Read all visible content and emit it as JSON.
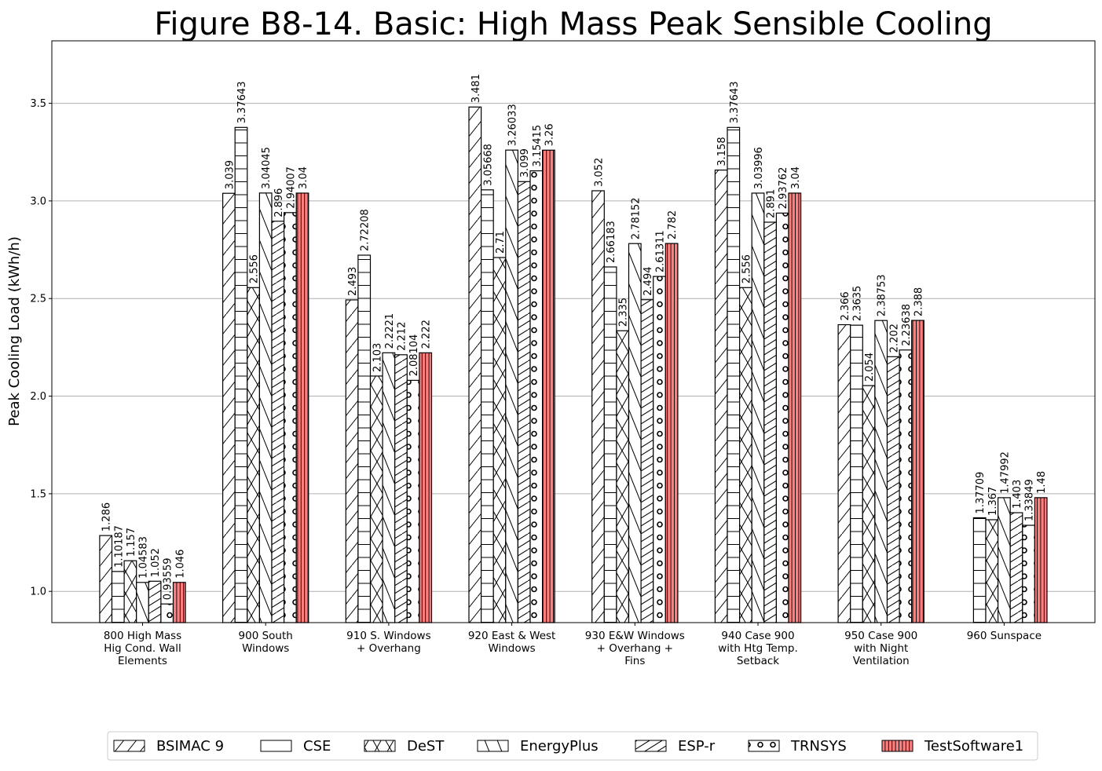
{
  "chart_data": {
    "type": "bar",
    "title": "Figure B8-14.  Basic: High Mass Peak Sensible Cooling",
    "xlabel": "",
    "ylabel": "Peak Cooling Load (kWh/h)",
    "ylim": [
      0.84,
      3.82
    ],
    "yticks": [
      1.0,
      1.5,
      2.0,
      2.5,
      3.0,
      3.5
    ],
    "ytick_labels": [
      "1.0",
      "1.5",
      "2.0",
      "2.5",
      "3.0",
      "3.5"
    ],
    "grid": "y-major",
    "legend_placement": "bottom-center",
    "categories": [
      [
        "800 High Mass",
        "Hig Cond. Wall",
        "Elements"
      ],
      [
        "900 South",
        "Windows"
      ],
      [
        "910 S. Windows",
        "+ Overhang"
      ],
      [
        "920 East & West",
        "Windows"
      ],
      [
        "930 E&W Windows",
        "+ Overhang +",
        "Fins"
      ],
      [
        "940 Case 900",
        "with Htg Temp.",
        "Setback"
      ],
      [
        "950 Case 900",
        "with Night",
        "Ventilation"
      ],
      [
        "960 Sunspace"
      ]
    ],
    "series": [
      {
        "name": "BSIMAC 9",
        "pattern": "slash",
        "color": "#ffffff",
        "values": [
          1.286,
          3.039,
          2.493,
          3.481,
          3.052,
          3.158,
          2.366,
          null
        ],
        "labels": [
          "1.286",
          "3.039",
          "2.493",
          "3.481",
          "3.052",
          "3.158",
          "2.366",
          ""
        ]
      },
      {
        "name": "CSE",
        "pattern": "hline",
        "color": "#ffffff",
        "values": [
          1.10187,
          3.37643,
          2.72208,
          3.05668,
          2.66183,
          3.37643,
          2.3635,
          1.37709
        ],
        "labels": [
          "1.10187",
          "3.37643",
          "2.72208",
          "3.05668",
          "2.66183",
          "3.37643",
          "2.3635",
          "1.37709"
        ]
      },
      {
        "name": "DeST",
        "pattern": "cross",
        "color": "#ffffff",
        "values": [
          1.157,
          2.556,
          2.103,
          2.71,
          2.335,
          2.556,
          2.054,
          1.367
        ],
        "labels": [
          "1.157",
          "2.556",
          "2.103",
          "2.71",
          "2.335",
          "2.556",
          "2.054",
          "1.367"
        ]
      },
      {
        "name": "EnergyPlus",
        "pattern": "backslash",
        "color": "#ffffff",
        "values": [
          1.04583,
          3.04045,
          2.2221,
          3.26033,
          2.78152,
          3.03996,
          2.38753,
          1.47992
        ],
        "labels": [
          "1.04583",
          "3.04045",
          "2.2221",
          "3.26033",
          "2.78152",
          "3.03996",
          "2.38753",
          "1.47992"
        ]
      },
      {
        "name": "ESP-r",
        "pattern": "dslash",
        "color": "#ffffff",
        "values": [
          1.052,
          2.896,
          2.212,
          3.099,
          2.494,
          2.891,
          2.202,
          1.403
        ],
        "labels": [
          "1.052",
          "2.896",
          "2.212",
          "3.099",
          "2.494",
          "2.891",
          "2.202",
          "1.403"
        ]
      },
      {
        "name": "TRNSYS",
        "pattern": "circles",
        "color": "#ffffff",
        "values": [
          0.93559,
          2.94007,
          2.08104,
          3.15415,
          2.61311,
          2.93762,
          2.23638,
          1.33849
        ],
        "labels": [
          "0.93559",
          "2.94007",
          "2.08104",
          "3.15415",
          "2.61311",
          "2.93762",
          "2.23638",
          "1.33849"
        ]
      },
      {
        "name": "TestSoftware1",
        "pattern": "vline",
        "color": "#ff7f7f",
        "values": [
          1.046,
          3.04,
          2.222,
          3.26,
          2.782,
          3.04,
          2.388,
          1.48
        ],
        "labels": [
          "1.046",
          "3.04",
          "2.222",
          "3.26",
          "2.782",
          "3.04",
          "2.388",
          "1.48"
        ]
      }
    ]
  }
}
